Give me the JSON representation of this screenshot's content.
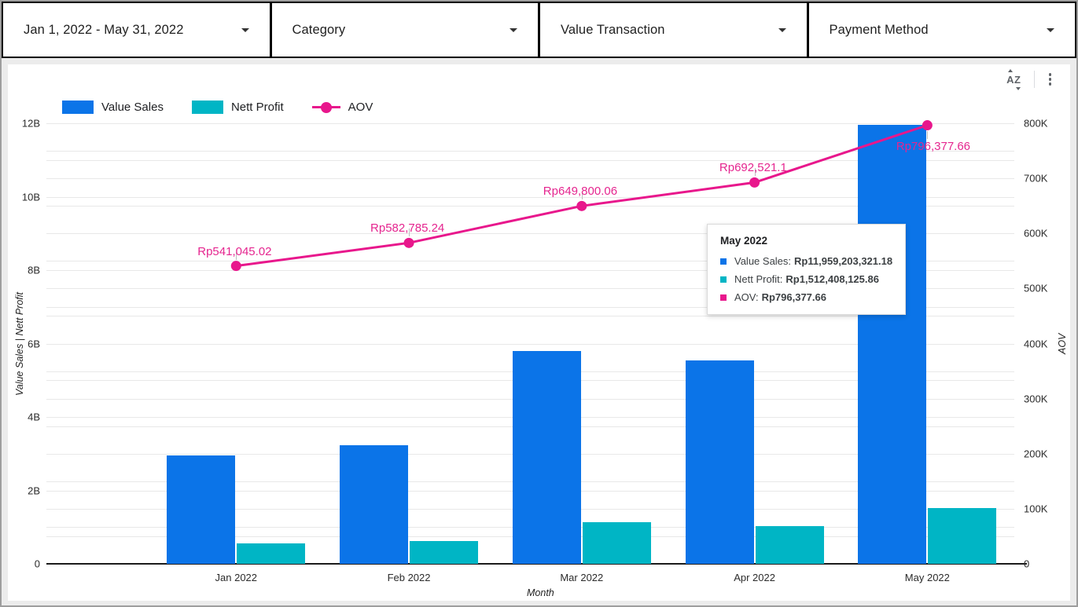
{
  "filters": [
    {
      "label": "Jan 1, 2022 - May 31, 2022"
    },
    {
      "label": "Category"
    },
    {
      "label": "Value Transaction"
    },
    {
      "label": "Payment Method"
    }
  ],
  "toolbar": {
    "sort_icon_text": "AZ",
    "menu_icon": "kebab-menu"
  },
  "legend": {
    "items": [
      {
        "label": "Value Sales",
        "color": "#0b74e8",
        "type": "bar"
      },
      {
        "label": "Nett Profit",
        "color": "#00b5c5",
        "type": "bar"
      },
      {
        "label": "AOV",
        "color": "#e8178c",
        "type": "line"
      }
    ]
  },
  "chart_data": {
    "type": "bar",
    "subtype": "combo-bar-line",
    "categories": [
      "Jan 2022",
      "Feb 2022",
      "Mar 2022",
      "Apr 2022",
      "May 2022"
    ],
    "series": [
      {
        "name": "Value Sales",
        "type": "bar",
        "axis": "left",
        "color": "#0b74e8",
        "values": [
          2960000000,
          3240000000,
          5790000000,
          5550000000,
          11959203321.18
        ]
      },
      {
        "name": "Nett Profit",
        "type": "bar",
        "axis": "left",
        "color": "#00b5c5",
        "values": [
          560000000,
          620000000,
          1140000000,
          1030000000,
          1512408125.86
        ]
      },
      {
        "name": "AOV",
        "type": "line",
        "axis": "right",
        "color": "#e8178c",
        "values": [
          541045.02,
          582785.24,
          649800.06,
          692521.1,
          796377.66
        ],
        "point_labels": [
          "Rp541,045.02",
          "Rp582,785.24",
          "Rp649,800.06",
          "Rp692,521.1",
          "Rp796,377.66"
        ]
      }
    ],
    "left_axis": {
      "title": "Value Sales | Nett Profit",
      "max": 12000000000,
      "ticks": [
        {
          "label": "0",
          "v": 0
        },
        {
          "label": "2B",
          "v": 2000000000
        },
        {
          "label": "4B",
          "v": 4000000000
        },
        {
          "label": "6B",
          "v": 6000000000
        },
        {
          "label": "8B",
          "v": 8000000000
        },
        {
          "label": "10B",
          "v": 10000000000
        },
        {
          "label": "12B",
          "v": 12000000000
        }
      ],
      "minor_step": 1000000000
    },
    "right_axis": {
      "title": "AOV",
      "max": 800000,
      "ticks": [
        {
          "label": "0",
          "v": 0
        },
        {
          "label": "100K",
          "v": 100000
        },
        {
          "label": "200K",
          "v": 200000
        },
        {
          "label": "300K",
          "v": 300000
        },
        {
          "label": "400K",
          "v": 400000
        },
        {
          "label": "500K",
          "v": 500000
        },
        {
          "label": "600K",
          "v": 600000
        },
        {
          "label": "700K",
          "v": 700000
        },
        {
          "label": "800K",
          "v": 800000
        }
      ],
      "minor_step": 50000
    },
    "x_axis": {
      "title": "Month"
    },
    "grid": true,
    "legend_position": "top-left"
  },
  "tooltip": {
    "title": "May 2022",
    "rows": [
      {
        "label": "Value Sales:",
        "value": "Rp11,959,203,321.18",
        "color": "#0b74e8"
      },
      {
        "label": "Nett Profit:",
        "value": "Rp1,512,408,125.86",
        "color": "#00b5c5"
      },
      {
        "label": "AOV:",
        "value": "Rp796,377.66",
        "color": "#e8178c"
      }
    ]
  }
}
